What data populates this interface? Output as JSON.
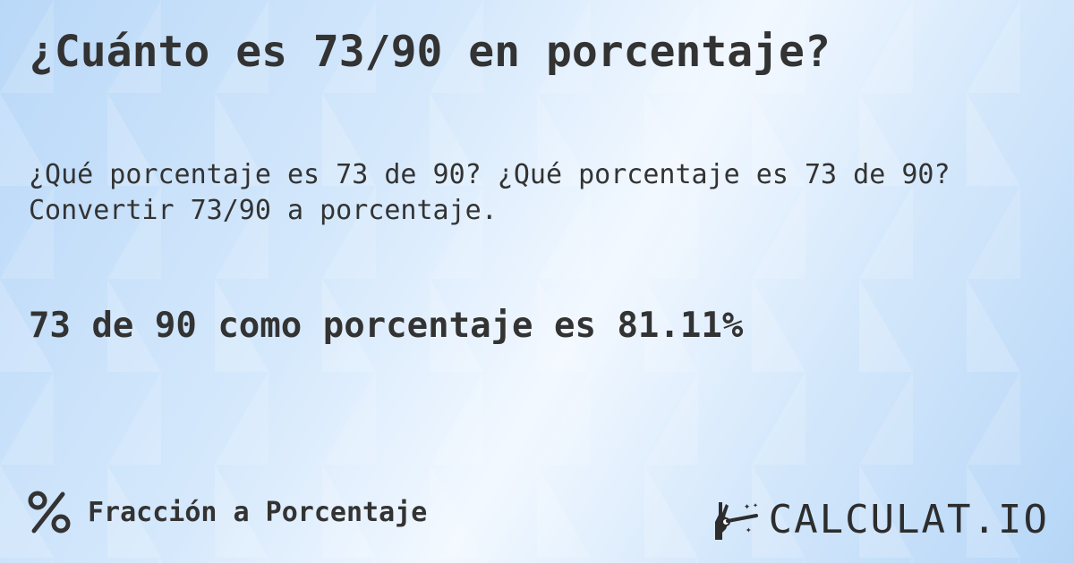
{
  "title": "¿Cuánto es 73/90 en porcentaje?",
  "description": "¿Qué porcentaje es 73 de 90? ¿Qué porcentaje es 73 de 90? Convertir 73/90 a porcentaje.",
  "result": "73 de 90 como porcentaje es 81.11%",
  "footer": {
    "icon": "percent-icon",
    "label": "Fracción a Porcentaje"
  },
  "logo": {
    "text": "CALCULAT.IO",
    "icon": "magic-hand-icon"
  },
  "colors": {
    "text": "#333333",
    "background": "#cfe4fa"
  }
}
